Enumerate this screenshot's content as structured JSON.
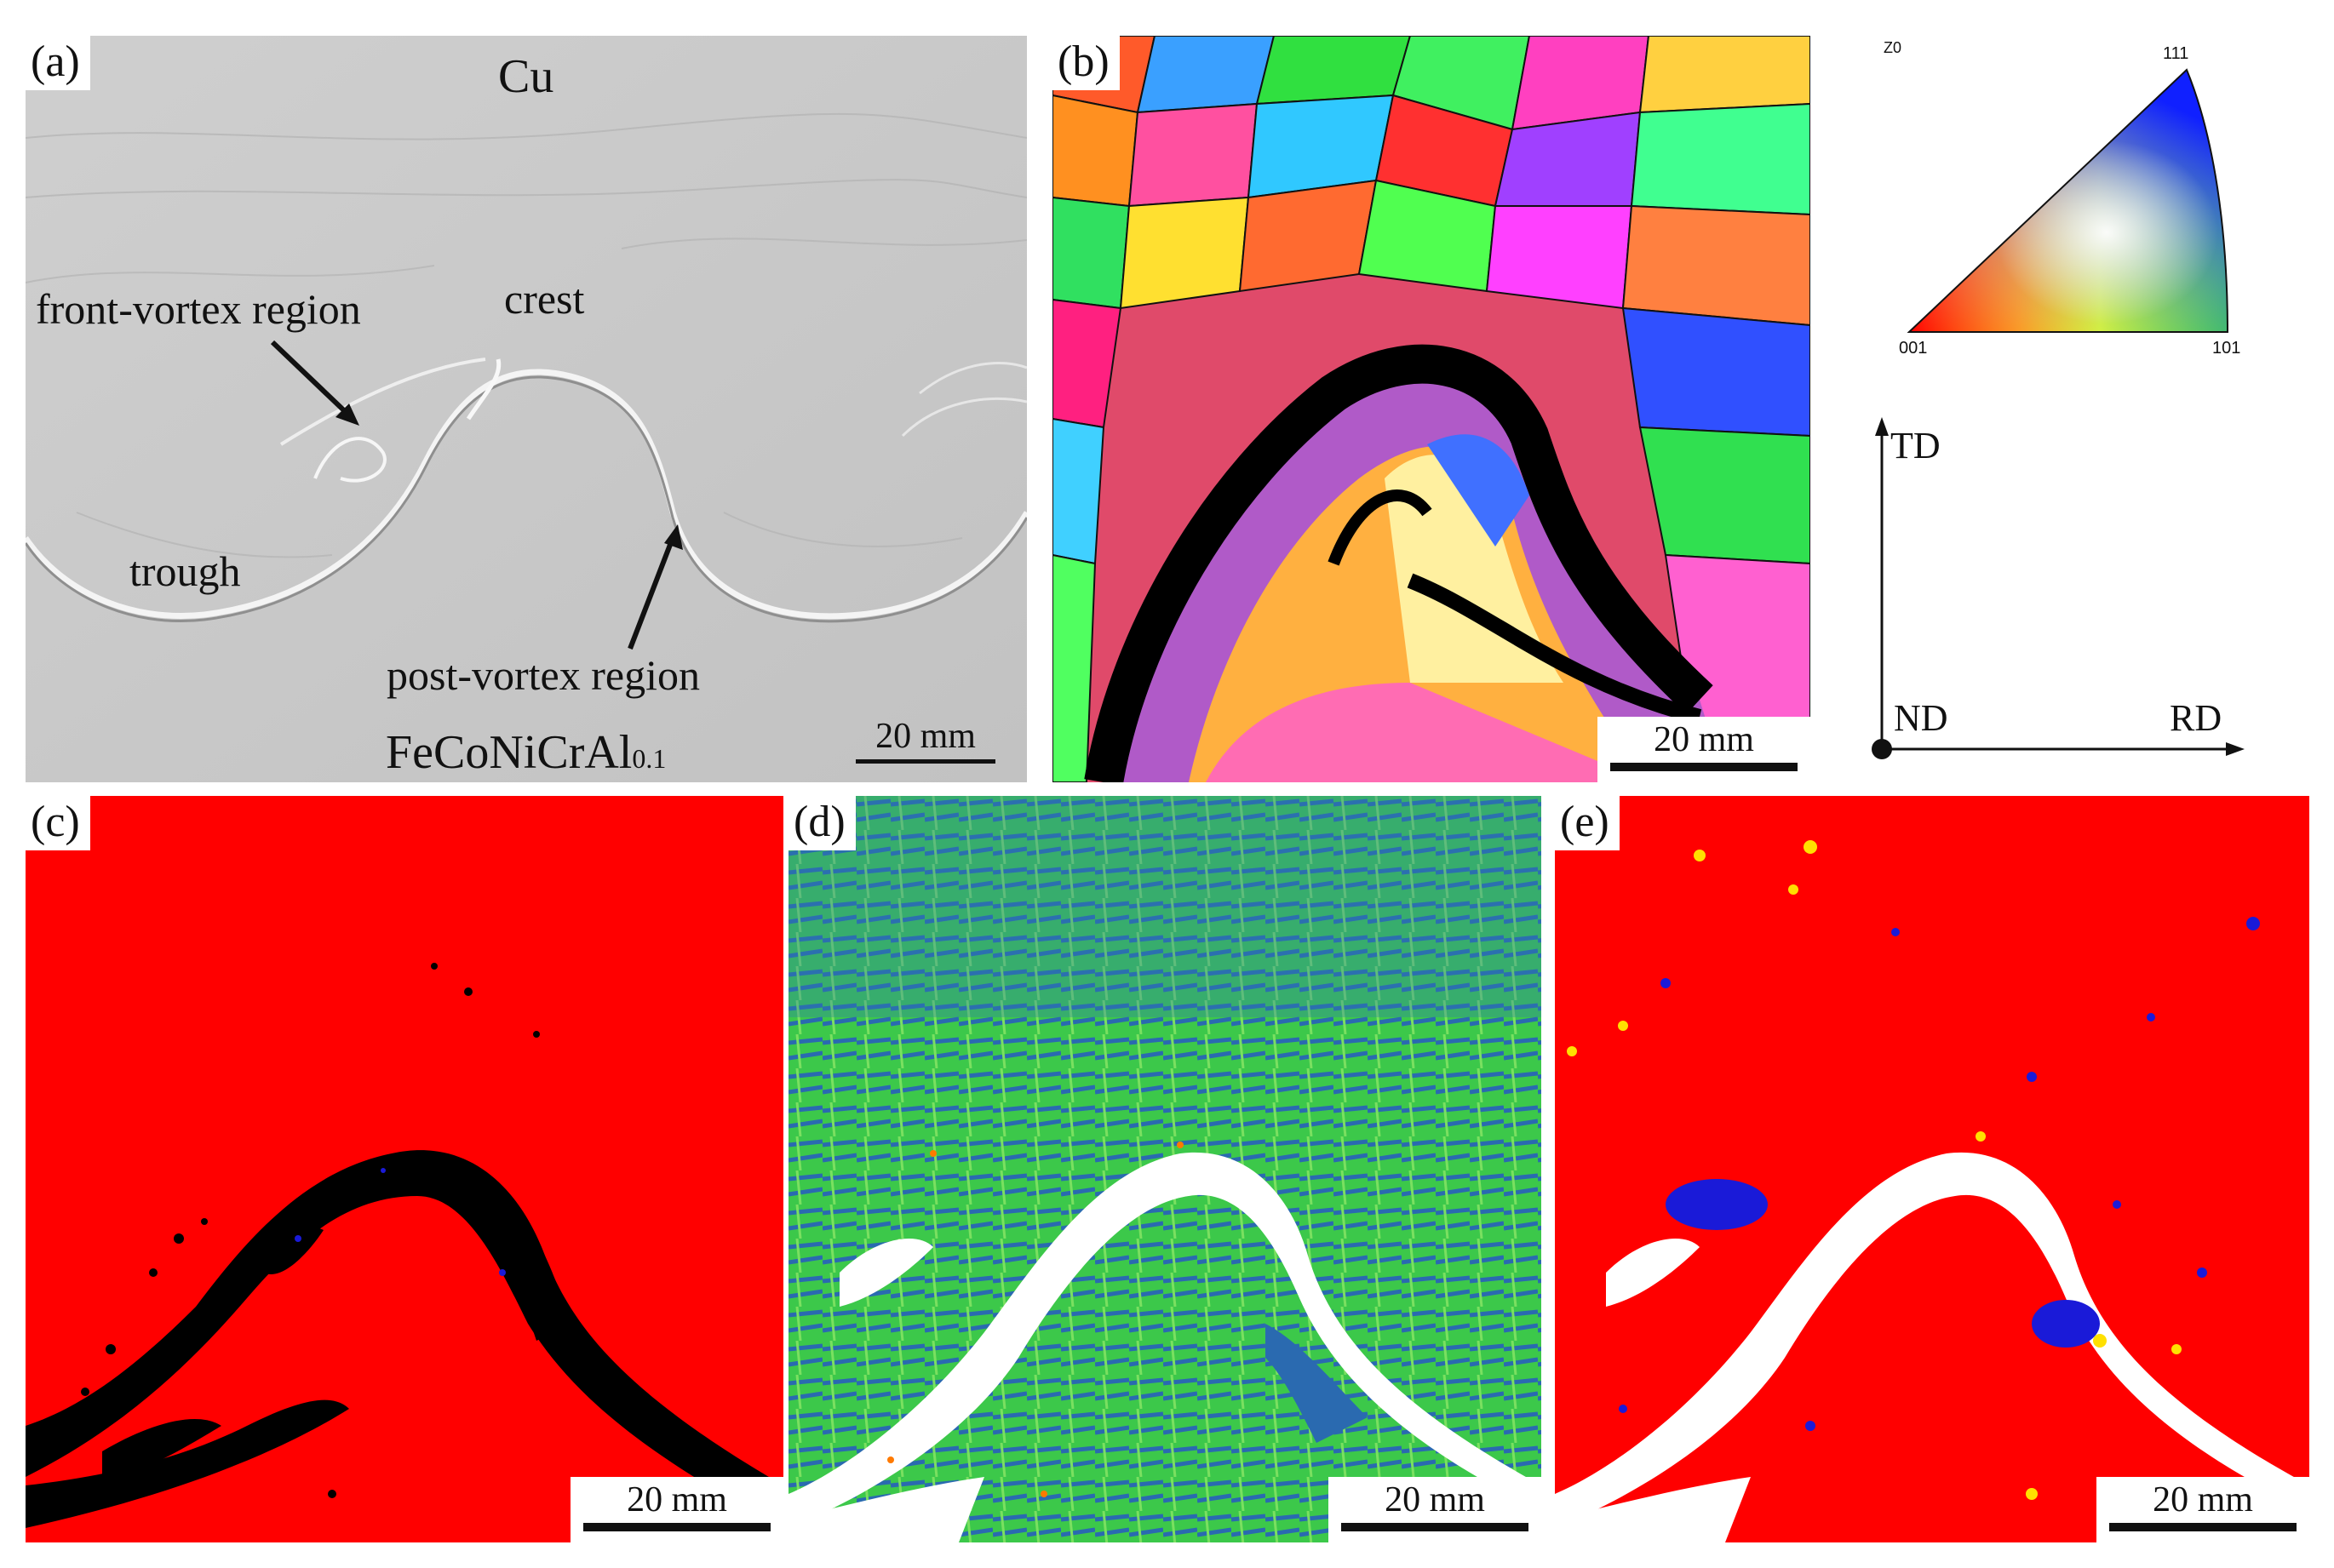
{
  "figure": {
    "panel_a": {
      "label": "(a)",
      "top_material": "Cu",
      "bottom_material_main": "FeCoNiCrAl",
      "bottom_material_sub": "0.1",
      "region_labels": {
        "front_vortex": "front-vortex region",
        "crest": "crest",
        "trough": "trough",
        "post_vortex": "post-vortex region"
      },
      "scale_bar": "20 mm",
      "background_color": "#c9c9c9"
    },
    "panel_b": {
      "label": "(b)",
      "scale_bar": "20 mm"
    },
    "ipf_legend": {
      "corner_tag": "Z0",
      "vertex_111": "111",
      "vertex_001": "001",
      "vertex_101": "101",
      "colors": {
        "001": "#ff0000",
        "101": "#00d000",
        "111": "#1020ff"
      }
    },
    "axes": {
      "td": "TD",
      "nd": "ND",
      "rd": "RD"
    },
    "panel_c": {
      "label": "(c)",
      "scale_bar": "20 mm",
      "colors": {
        "matrix": "#ff0000",
        "unindexed": "#000000"
      }
    },
    "panel_d": {
      "label": "(d)",
      "scale_bar": "20 mm",
      "colors": {
        "low": "#2a5fa8",
        "mid": "#3cd24a",
        "high": "#ff7a00",
        "unindexed": "#ffffff"
      }
    },
    "panel_e": {
      "label": "(e)",
      "scale_bar": "20 mm",
      "colors": {
        "matrix": "#ff0000",
        "blue": "#1a1ad8",
        "yellow": "#ffe000",
        "unindexed": "#ffffff"
      }
    }
  }
}
